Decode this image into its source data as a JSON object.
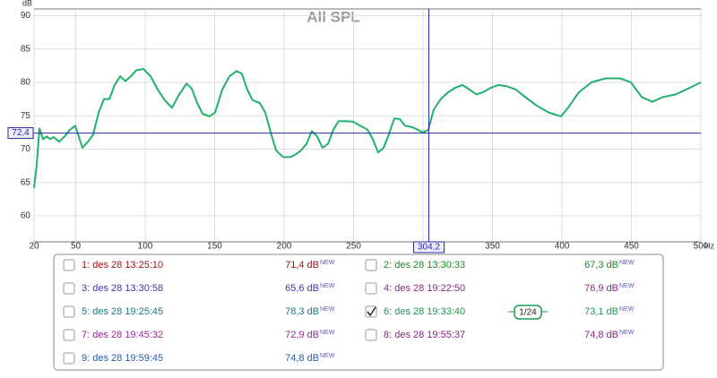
{
  "chart_data": {
    "type": "line",
    "title": "All SPL",
    "y_unit": "dB",
    "x_unit": "Hz",
    "color": "#22b06e",
    "grid": true,
    "xlim": [
      20,
      500
    ],
    "ylim": [
      56.1,
      91
    ],
    "xticks": [
      20,
      50,
      100,
      150,
      200,
      250,
      300,
      350,
      400,
      450,
      500
    ],
    "yticks": [
      60,
      65,
      70,
      75,
      80,
      85,
      90
    ],
    "x": [
      20,
      21.9,
      23.9,
      26.5,
      29,
      31.6,
      34.2,
      38,
      42,
      45.8,
      49.7,
      52.3,
      54.8,
      58.7,
      62.6,
      66.5,
      70.3,
      74.2,
      78,
      82,
      85.8,
      89.7,
      93.5,
      98.7,
      103.9,
      109,
      114.2,
      119.3,
      124.5,
      129.7,
      133.5,
      137.4,
      141.3,
      146.4,
      150.3,
      155.5,
      160.6,
      165.8,
      169.6,
      173.5,
      177.4,
      182.5,
      186.4,
      190.3,
      194.2,
      199.3,
      204.5,
      208.3,
      212.2,
      216.1,
      220,
      223.8,
      227.7,
      231.6,
      235.4,
      239.3,
      244.5,
      249.6,
      254.8,
      260,
      263.8,
      267.7,
      271.6,
      275.4,
      279.3,
      283.2,
      287,
      292.2,
      296.1,
      300,
      303.8,
      307.7,
      312.8,
      318,
      323.2,
      328.3,
      333.5,
      338.6,
      343.8,
      349,
      354.1,
      360.6,
      367,
      373.5,
      381.2,
      390.2,
      399.3,
      404.4,
      412.2,
      421.2,
      431.5,
      441.9,
      449.6,
      457.4,
      465.1,
      472.8,
      481.8,
      492.2,
      500
    ],
    "values": [
      64.2,
      67.5,
      73.1,
      71.5,
      71.9,
      71.5,
      71.8,
      71.1,
      71.9,
      72.9,
      73.5,
      71.8,
      70.2,
      71.1,
      72.2,
      75.5,
      77.5,
      77.5,
      79.6,
      80.9,
      80.2,
      80.9,
      81.8,
      82,
      80.9,
      78.9,
      77.3,
      76.2,
      78.2,
      79.8,
      79.1,
      76.9,
      75.3,
      74.9,
      75.5,
      78.9,
      80.9,
      81.7,
      81.3,
      78.9,
      77.3,
      76.9,
      75.5,
      72.5,
      69.8,
      68.8,
      68.8,
      69.2,
      69.8,
      70.8,
      72.7,
      71.9,
      70.2,
      70.8,
      72.9,
      74.2,
      74.2,
      74.1,
      73.5,
      72.9,
      71.5,
      69.5,
      70.2,
      72.2,
      74.6,
      74.5,
      73.5,
      73.3,
      72.9,
      72.5,
      72.9,
      75.9,
      77.5,
      78.5,
      79.2,
      79.6,
      78.9,
      78.2,
      78.6,
      79.2,
      79.6,
      79.4,
      78.9,
      77.8,
      76.6,
      75.5,
      74.9,
      76.2,
      78.5,
      80,
      80.6,
      80.6,
      80,
      77.8,
      77.1,
      77.8,
      78.2,
      79.2,
      80
    ],
    "cursor": {
      "x": 304.2,
      "x_label": "304,2",
      "y": 72.4,
      "y_label": "72,4"
    }
  },
  "legend": {
    "new_tag": "NEW",
    "smoothing": "1/24",
    "items": [
      {
        "label": "1: des 28 13:25:10",
        "value": "71,4 dB",
        "color": "#a01414",
        "checked": false
      },
      {
        "label": "2: des 28 13:30:33",
        "value": "67,3 dB",
        "color": "#1a8a22",
        "checked": false
      },
      {
        "label": "3: des 28 13:30:58",
        "value": "65,6 dB",
        "color": "#3a3aa8",
        "checked": false
      },
      {
        "label": "4: des 28 19:22:50",
        "value": "76,9 dB",
        "color": "#8a2a8a",
        "checked": false
      },
      {
        "label": "5: des 28 19:25:45",
        "value": "78,3 dB",
        "color": "#1a7a7a",
        "checked": false
      },
      {
        "label": "6: des 28 19:33:40",
        "value": "73,1 dB",
        "color": "#1a9a50",
        "checked": true
      },
      {
        "label": "7: des 28 19:45:32",
        "value": "72,9 dB",
        "color": "#9a2a9a",
        "checked": false
      },
      {
        "label": "8: des 28 19:55:37",
        "value": "74,8 dB",
        "color": "#8a2080",
        "checked": false
      },
      {
        "label": "9: des 28 19:59:45",
        "value": "74,8 dB",
        "color": "#2a5aa8",
        "checked": false
      }
    ]
  }
}
